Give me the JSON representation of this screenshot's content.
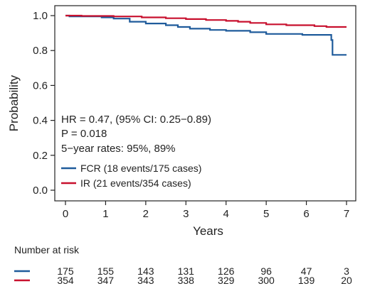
{
  "chart_data": {
    "type": "line",
    "ylabel": "Probability",
    "xlabel": "Years",
    "xlim": [
      0,
      7
    ],
    "ylim": [
      0,
      1
    ],
    "x_ticks": [
      "0",
      "1",
      "2",
      "3",
      "4",
      "5",
      "6",
      "7"
    ],
    "y_ticks": [
      "0.0",
      "0.2",
      "0.4",
      "0.6",
      "0.8",
      "1.0"
    ],
    "grid": false,
    "legend_position": "bottom-left",
    "colors": {
      "FCR": "#1f5b9b",
      "IR": "#c8102e"
    },
    "annotations": [
      "HR = 0.47, (95% CI: 0.25−0.89)",
      "P = 0.018",
      "5−year rates: 95%, 89%"
    ],
    "series": [
      {
        "name": "FCR (18 events/175 cases)",
        "key": "FCR",
        "steps": [
          [
            0,
            1.0
          ],
          [
            0.1,
            0.995
          ],
          [
            0.9,
            0.99
          ],
          [
            1.2,
            0.983
          ],
          [
            1.6,
            0.965
          ],
          [
            2.0,
            0.955
          ],
          [
            2.5,
            0.945
          ],
          [
            2.8,
            0.935
          ],
          [
            3.1,
            0.925
          ],
          [
            3.6,
            0.918
          ],
          [
            4.0,
            0.913
          ],
          [
            4.6,
            0.905
          ],
          [
            5.0,
            0.895
          ],
          [
            5.9,
            0.89
          ],
          [
            6.6,
            0.89
          ],
          [
            6.62,
            0.86
          ],
          [
            6.65,
            0.775
          ],
          [
            7.0,
            0.775
          ]
        ]
      },
      {
        "name": "IR (21 events/354 cases)",
        "key": "IR",
        "steps": [
          [
            0,
            1.0
          ],
          [
            0.4,
            0.998
          ],
          [
            1.2,
            0.995
          ],
          [
            1.9,
            0.99
          ],
          [
            2.5,
            0.985
          ],
          [
            3.0,
            0.98
          ],
          [
            3.5,
            0.975
          ],
          [
            4.0,
            0.97
          ],
          [
            4.3,
            0.965
          ],
          [
            4.6,
            0.958
          ],
          [
            5.0,
            0.95
          ],
          [
            5.5,
            0.945
          ],
          [
            6.2,
            0.94
          ],
          [
            6.5,
            0.935
          ],
          [
            7.0,
            0.935
          ]
        ]
      }
    ]
  },
  "risk_table": {
    "title": "Number at risk",
    "rows": [
      {
        "key": "FCR",
        "values": [
          "175",
          "155",
          "143",
          "131",
          "126",
          "96",
          "47",
          "3"
        ]
      },
      {
        "key": "IR",
        "values": [
          "354",
          "347",
          "343",
          "338",
          "329",
          "300",
          "139",
          "20"
        ]
      }
    ]
  }
}
